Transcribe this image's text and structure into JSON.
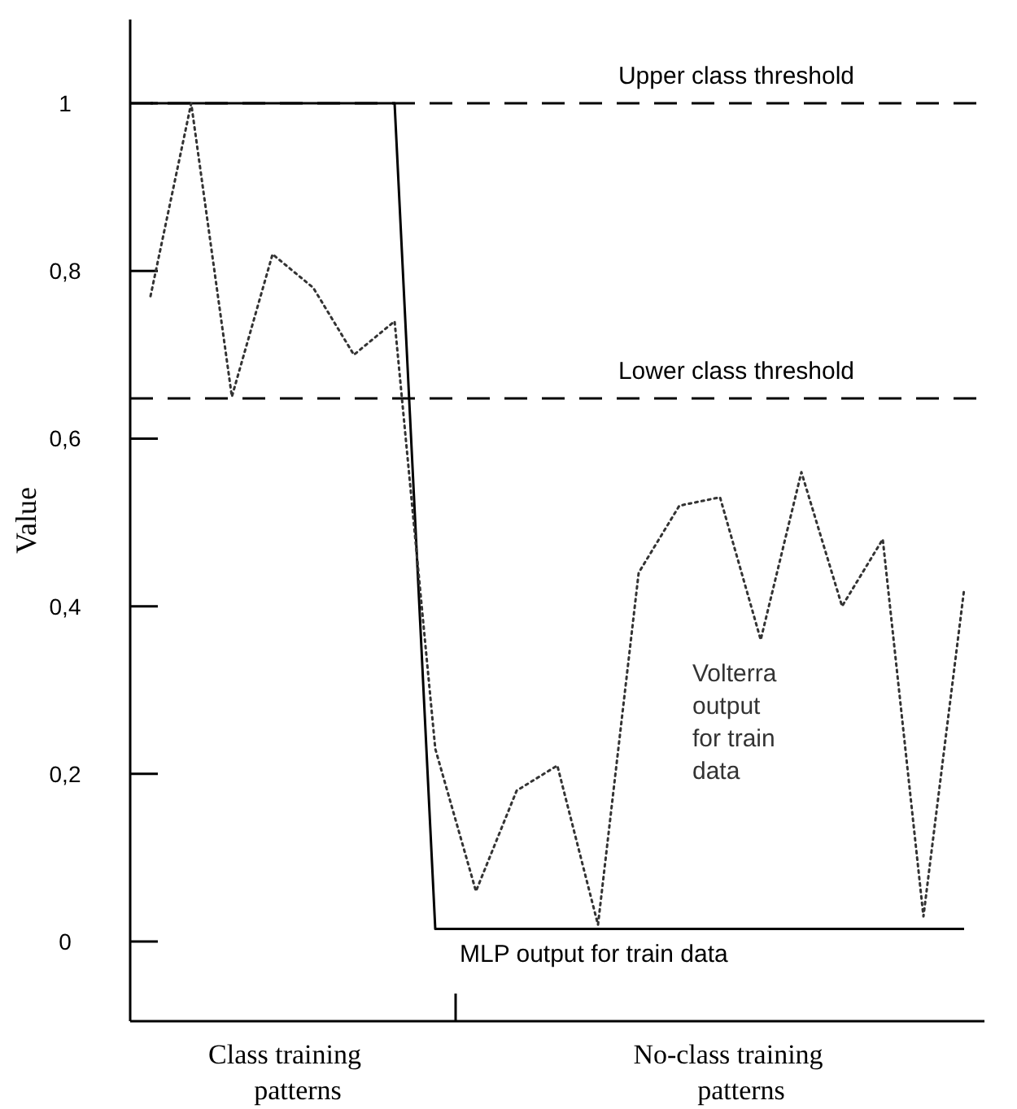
{
  "chart_data": {
    "type": "line",
    "ylabel": "Value",
    "ylim": [
      -0.095,
      1.1
    ],
    "categories": [
      null,
      null,
      null,
      null,
      null,
      null,
      null,
      null,
      null,
      null,
      null,
      null,
      null,
      null,
      null,
      null,
      null,
      null,
      null,
      null,
      null
    ],
    "yticks": [
      {
        "value": 0,
        "label": "0"
      },
      {
        "value": 0.2,
        "label": "0,2"
      },
      {
        "value": 0.4,
        "label": "0,4"
      },
      {
        "value": 0.6,
        "label": "0,6"
      },
      {
        "value": 0.8,
        "label": "0,8"
      },
      {
        "value": 1,
        "label": "1"
      }
    ],
    "tick_labels": "y",
    "grid": false,
    "marker": "none",
    "series": [
      {
        "name": "Volterra output for train data",
        "color": "#333333",
        "line_style": "dotted",
        "values": [
          0.77,
          1.0,
          0.65,
          0.82,
          0.78,
          0.7,
          0.74,
          0.23,
          0.06,
          0.18,
          0.21,
          0.02,
          0.44,
          0.52,
          0.53,
          0.36,
          0.56,
          0.4,
          0.48,
          0.03,
          0.42
        ]
      },
      {
        "name": "MLP output for train data",
        "color": "#000000",
        "line_style": "solid",
        "values": [
          1,
          1,
          1,
          1,
          1,
          1,
          1,
          0.015,
          0.015,
          0.015,
          0.015,
          0.015,
          0.015,
          0.015,
          0.015,
          0.015,
          0.015,
          0.015,
          0.015,
          0.015,
          0.015
        ]
      }
    ],
    "ref_lines": [
      {
        "axis": "y",
        "value": 1,
        "label": "Upper class threshold",
        "line_style": "dashed",
        "color": "#000000"
      },
      {
        "axis": "y",
        "value": 0.648,
        "label": "Lower class threshold",
        "line_style": "dashed",
        "color": "#000000"
      }
    ],
    "annotations": [
      "Class training patterns",
      "No-class training patterns"
    ]
  }
}
